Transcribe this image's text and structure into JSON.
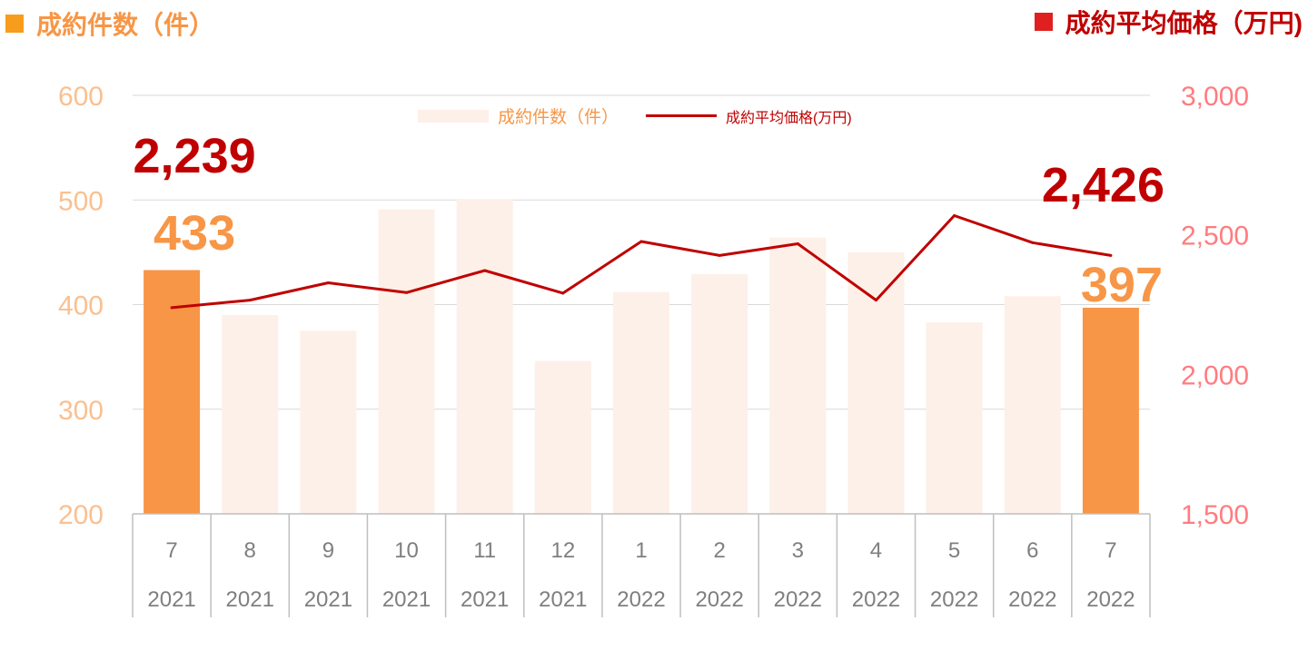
{
  "header": {
    "left_title": "成約件数（件）",
    "right_title": "成約平均価格（万円)"
  },
  "chart_data": {
    "type": "bar+line",
    "categories": [
      {
        "month": "7",
        "year": "2021"
      },
      {
        "month": "8",
        "year": "2021"
      },
      {
        "month": "9",
        "year": "2021"
      },
      {
        "month": "10",
        "year": "2021"
      },
      {
        "month": "11",
        "year": "2021"
      },
      {
        "month": "12",
        "year": "2021"
      },
      {
        "month": "1",
        "year": "2022"
      },
      {
        "month": "2",
        "year": "2022"
      },
      {
        "month": "3",
        "year": "2022"
      },
      {
        "month": "4",
        "year": "2022"
      },
      {
        "month": "5",
        "year": "2022"
      },
      {
        "month": "6",
        "year": "2022"
      },
      {
        "month": "7",
        "year": "2022"
      }
    ],
    "series": [
      {
        "name": "成約件数（件）",
        "type": "bar",
        "axis": "left",
        "values": [
          433,
          390,
          375,
          491,
          501,
          346,
          412,
          429,
          464,
          450,
          383,
          408,
          397
        ],
        "highlight_indices": [
          0,
          12
        ]
      },
      {
        "name": "成約平均価格(万円)",
        "type": "line",
        "axis": "right",
        "values": [
          2239,
          2266,
          2328,
          2293,
          2372,
          2291,
          2476,
          2426,
          2468,
          2266,
          2569,
          2472,
          2426
        ]
      }
    ],
    "y_left": {
      "min": 200,
      "max": 600,
      "ticks": [
        "200",
        "300",
        "400",
        "500",
        "600"
      ]
    },
    "y_right": {
      "min": 1500,
      "max": 3000,
      "ticks": [
        "1,500",
        "2,000",
        "2,500",
        "3,000"
      ]
    },
    "grid": true,
    "legend_position": "top-center",
    "annotations": [
      {
        "series": 1,
        "index": 0,
        "label": "2,239"
      },
      {
        "series": 0,
        "index": 0,
        "label": "433"
      },
      {
        "series": 1,
        "index": 12,
        "label": "2,426"
      },
      {
        "series": 0,
        "index": 12,
        "label": "397"
      }
    ]
  },
  "colors": {
    "highlight_bar": "#F79646",
    "pale_bar": "#FDF0E8",
    "line": "#C00000",
    "left_axis_text": "#FAC090",
    "right_axis_text": "#FF7C80",
    "annotation_price": "#C00000",
    "annotation_count": "#F79646",
    "header_left": "#F79646",
    "header_left_square": "#F89C1C",
    "header_right": "#C00000",
    "header_right_square": "#E02020",
    "category_text": "#7F7F7F",
    "grid": "#D9D9D9",
    "category_border": "#BFBFBF"
  }
}
